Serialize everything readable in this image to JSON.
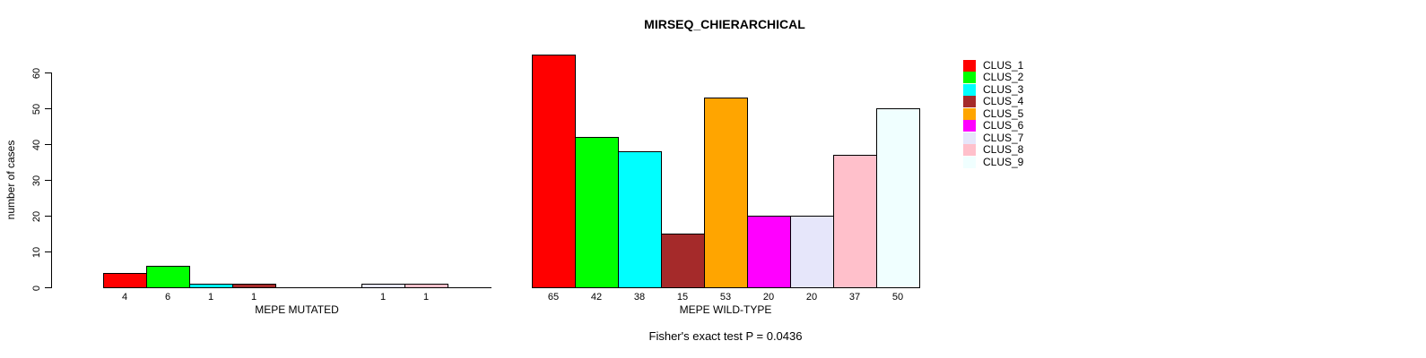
{
  "title": "MIRSEQ_CHIERARCHICAL",
  "footer": "Fisher's exact test P = 0.0436",
  "y_axis": {
    "label": "number of cases",
    "ticks": [
      0,
      10,
      20,
      30,
      40,
      50,
      60
    ]
  },
  "legend": {
    "position": "right",
    "items": [
      {
        "label": "CLUS_1",
        "color": "#FF0000"
      },
      {
        "label": "CLUS_2",
        "color": "#00FF00"
      },
      {
        "label": "CLUS_3",
        "color": "#00FFFF"
      },
      {
        "label": "CLUS_4",
        "color": "#A52A2A"
      },
      {
        "label": "CLUS_5",
        "color": "#FFA500"
      },
      {
        "label": "CLUS_6",
        "color": "#FF00FF"
      },
      {
        "label": "CLUS_7",
        "color": "#E6E6FA"
      },
      {
        "label": "CLUS_8",
        "color": "#FFC0CB"
      },
      {
        "label": "CLUS_9",
        "color": "#F0FFFF"
      }
    ]
  },
  "chart_data": [
    {
      "type": "bar",
      "title": "MIRSEQ_CHIERARCHICAL",
      "xlabel": "MEPE MUTATED",
      "ylabel": "number of cases",
      "ylim": [
        0,
        60
      ],
      "grid": false,
      "categories": [
        "CLUS_1",
        "CLUS_2",
        "CLUS_3",
        "CLUS_4",
        "CLUS_5",
        "CLUS_6",
        "CLUS_7",
        "CLUS_8",
        "CLUS_9"
      ],
      "values": [
        4,
        6,
        1,
        1,
        0,
        0,
        1,
        1,
        0
      ],
      "colors": [
        "#FF0000",
        "#00FF00",
        "#00FFFF",
        "#A52A2A",
        "#FFA500",
        "#FF00FF",
        "#E6E6FA",
        "#FFC0CB",
        "#F0FFFF"
      ]
    },
    {
      "type": "bar",
      "title": "MIRSEQ_CHIERARCHICAL",
      "xlabel": "MEPE WILD-TYPE",
      "ylabel": "number of cases",
      "ylim": [
        0,
        60
      ],
      "grid": false,
      "categories": [
        "CLUS_1",
        "CLUS_2",
        "CLUS_3",
        "CLUS_4",
        "CLUS_5",
        "CLUS_6",
        "CLUS_7",
        "CLUS_8",
        "CLUS_9"
      ],
      "values": [
        65,
        42,
        38,
        15,
        53,
        20,
        20,
        37,
        50
      ],
      "colors": [
        "#FF0000",
        "#00FF00",
        "#00FFFF",
        "#A52A2A",
        "#FFA500",
        "#FF00FF",
        "#E6E6FA",
        "#FFC0CB",
        "#F0FFFF"
      ]
    }
  ],
  "annotation_note": "Fisher's exact test P = 0.0436"
}
